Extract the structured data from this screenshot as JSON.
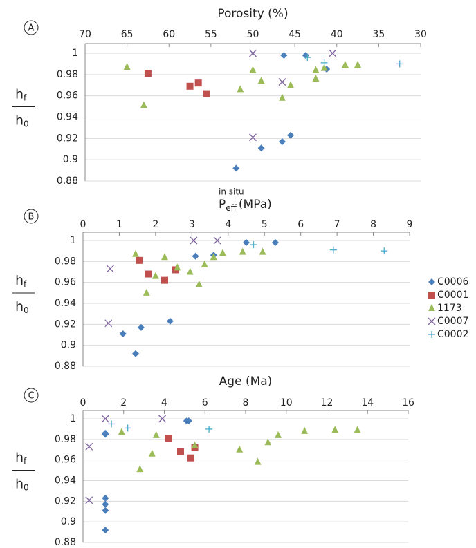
{
  "chart_data": [
    {
      "type": "scatter",
      "panel": "A",
      "xlabel": "Porosity (%)",
      "ylabel_num": "h",
      "ylabel_num_sub": "f",
      "ylabel_den": "h",
      "ylabel_den_sub": "0",
      "xlim": [
        70,
        30
      ],
      "xticks": [
        70,
        65,
        60,
        55,
        50,
        45,
        40,
        35,
        30
      ],
      "ylim": [
        0.88,
        1
      ],
      "yticks": [
        0.88,
        0.9,
        0.92,
        0.94,
        0.96,
        0.98,
        1
      ],
      "grid": true,
      "series": [
        {
          "name": "C0006",
          "color": "#4a7ebb",
          "marker": "diamond",
          "x": [
            46.3,
            43.7,
            41.2,
            45.5,
            46.5,
            49,
            52
          ],
          "values": [
            0.998,
            0.998,
            0.985,
            0.923,
            0.917,
            0.911,
            0.892
          ]
        },
        {
          "name": "C0001",
          "color": "#c0504d",
          "marker": "square",
          "x": [
            62.5,
            57.5,
            56.5,
            55.5
          ],
          "values": [
            0.981,
            0.969,
            0.972,
            0.962
          ]
        },
        {
          "name": "1173",
          "color": "#9bbb59",
          "marker": "triangle",
          "x": [
            65,
            63,
            51.5,
            50,
            49,
            46.5,
            45.5,
            42.5,
            42.5,
            41.5,
            39,
            37.5
          ],
          "values": [
            0.987,
            0.951,
            0.966,
            0.984,
            0.974,
            0.958,
            0.97,
            0.984,
            0.976,
            0.986,
            0.989,
            0.989
          ]
        },
        {
          "name": "C0007",
          "color": "#8064a2",
          "marker": "cross",
          "x": [
            50,
            40.5,
            46.5,
            50
          ],
          "values": [
            1,
            1,
            0.973,
            0.921
          ]
        },
        {
          "name": "C0002",
          "color": "#4bacc6",
          "marker": "plus",
          "x": [
            43.5,
            41.5,
            32.5
          ],
          "values": [
            0.996,
            0.991,
            0.99
          ]
        }
      ]
    },
    {
      "type": "scatter",
      "panel": "B",
      "xlabel": "P",
      "xlabel_sub": "eff",
      "xlabel_sup": "in situ",
      "xlabel_unit": "(MPa)",
      "ylabel_num": "h",
      "ylabel_num_sub": "f",
      "ylabel_den": "h",
      "ylabel_den_sub": "0",
      "xlim": [
        0,
        9
      ],
      "xticks": [
        0,
        1,
        2,
        3,
        4,
        5,
        6,
        7,
        8,
        9
      ],
      "ylim": [
        0.88,
        1
      ],
      "yticks": [
        0.88,
        0.9,
        0.92,
        0.94,
        0.96,
        0.98,
        1
      ],
      "grid": true,
      "legend": "right",
      "series": [
        {
          "name": "C0006",
          "color": "#4a7ebb",
          "marker": "diamond",
          "x": [
            4.5,
            5.3,
            3.1,
            3.6,
            2.4,
            1.6,
            1.1,
            1.45
          ],
          "values": [
            0.998,
            0.998,
            0.985,
            0.986,
            0.923,
            0.917,
            0.911,
            0.892
          ]
        },
        {
          "name": "C0001",
          "color": "#c0504d",
          "marker": "square",
          "x": [
            1.55,
            1.8,
            2.25,
            2.55
          ],
          "values": [
            0.981,
            0.968,
            0.962,
            0.972
          ]
        },
        {
          "name": "1173",
          "color": "#9bbb59",
          "marker": "triangle",
          "x": [
            1.45,
            2.0,
            2.25,
            2.6,
            2.95,
            3.2,
            3.35,
            3.6,
            3.85,
            4.4,
            4.95,
            1.75
          ],
          "values": [
            0.987,
            0.966,
            0.984,
            0.974,
            0.97,
            0.958,
            0.977,
            0.984,
            0.988,
            0.989,
            0.989,
            0.95
          ]
        },
        {
          "name": "C0007",
          "color": "#8064a2",
          "marker": "cross",
          "x": [
            3.05,
            3.7,
            0.75,
            0.7
          ],
          "values": [
            1,
            1,
            0.973,
            0.921
          ]
        },
        {
          "name": "C0002",
          "color": "#4bacc6",
          "marker": "plus",
          "x": [
            4.7,
            6.9,
            8.3
          ],
          "values": [
            0.996,
            0.991,
            0.99
          ]
        }
      ]
    },
    {
      "type": "scatter",
      "panel": "C",
      "xlabel": "Age (Ma)",
      "ylabel_num": "h",
      "ylabel_num_sub": "f",
      "ylabel_den": "h",
      "ylabel_den_sub": "0",
      "xlim": [
        0,
        16
      ],
      "xticks": [
        0,
        2,
        4,
        6,
        8,
        10,
        12,
        14,
        16
      ],
      "ylim": [
        0.88,
        1
      ],
      "yticks": [
        0.88,
        0.9,
        0.92,
        0.94,
        0.96,
        0.98,
        1
      ],
      "grid": true,
      "series": [
        {
          "name": "C0006",
          "color": "#4a7ebb",
          "marker": "diamond",
          "x": [
            1.1,
            1.1,
            1.1,
            1.1,
            1.1,
            1.1,
            5.1,
            5.2
          ],
          "values": [
            0.985,
            0.986,
            0.923,
            0.917,
            0.911,
            0.892,
            0.998,
            0.998
          ]
        },
        {
          "name": "C0001",
          "color": "#c0504d",
          "marker": "square",
          "x": [
            4.2,
            4.8,
            5.3,
            5.5
          ],
          "values": [
            0.981,
            0.968,
            0.962,
            0.972
          ]
        },
        {
          "name": "1173",
          "color": "#9bbb59",
          "marker": "triangle",
          "x": [
            1.9,
            2.8,
            3.4,
            3.6,
            5.5,
            7.7,
            8.6,
            9.1,
            9.6,
            10.9,
            12.4,
            13.5
          ],
          "values": [
            0.987,
            0.951,
            0.966,
            0.984,
            0.974,
            0.97,
            0.958,
            0.977,
            0.984,
            0.988,
            0.989,
            0.989
          ]
        },
        {
          "name": "C0007",
          "color": "#8064a2",
          "marker": "cross",
          "x": [
            0.3,
            0.3,
            1.1,
            3.9
          ],
          "values": [
            0.973,
            0.921,
            1,
            1
          ]
        },
        {
          "name": "C0002",
          "color": "#4bacc6",
          "marker": "plus",
          "x": [
            1.4,
            2.2,
            6.2
          ],
          "values": [
            0.995,
            0.991,
            0.99
          ]
        }
      ]
    }
  ]
}
